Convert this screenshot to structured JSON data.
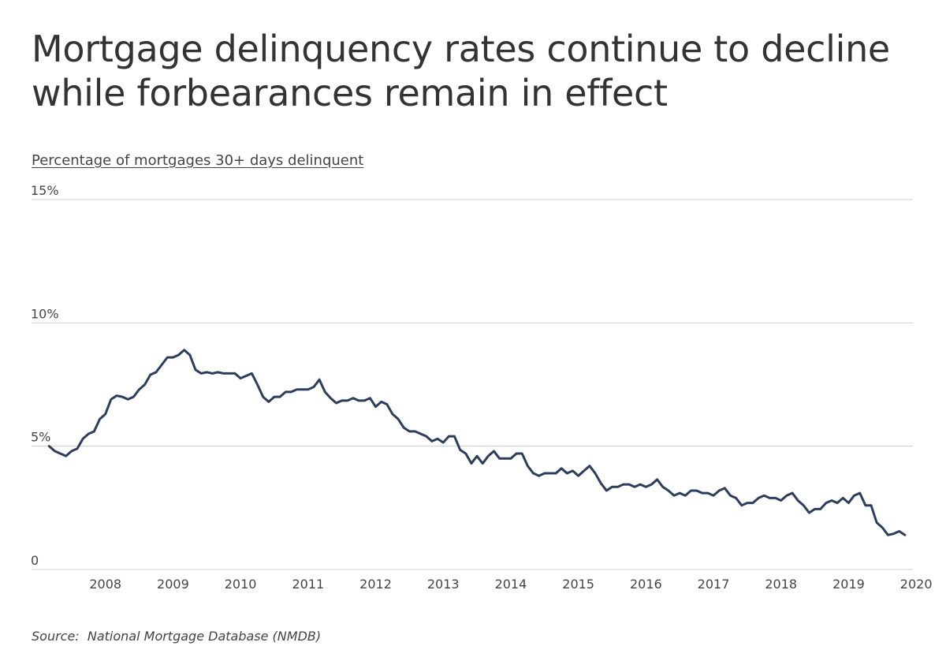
{
  "page": {
    "title": "Mortgage delinquency rates continue to decline while forbearances remain in effect",
    "source_label": "Source:",
    "source_text": "National Mortgage Database (NMDB)"
  },
  "chart_data": {
    "type": "line",
    "title": "Mortgage delinquency rates continue to decline while forbearances remain in effect",
    "ylabel": "Percentage of mortgages 30+ days delinquent",
    "xlabel": "",
    "ylim": [
      0,
      15
    ],
    "y_ticks": [
      {
        "value": 0,
        "label": "0"
      },
      {
        "value": 5,
        "label": "5%"
      },
      {
        "value": 10,
        "label": "10%"
      },
      {
        "value": 15,
        "label": "15%"
      }
    ],
    "x_ticks": [
      "2008",
      "2009",
      "2010",
      "2011",
      "2012",
      "2013",
      "2014",
      "2015",
      "2016",
      "2017",
      "2018",
      "2019",
      "2020"
    ],
    "xlim": [
      "2007-07",
      "2020-06"
    ],
    "grid": true,
    "line_color": "#2d3e5c",
    "grid_color": "#cccccc",
    "series": [
      {
        "x": [
          "2007-09",
          "2007-10",
          "2007-11",
          "2007-12",
          "2008-01",
          "2008-02",
          "2008-03",
          "2008-04",
          "2008-05",
          "2008-06",
          "2008-07",
          "2008-08",
          "2008-09",
          "2008-10",
          "2008-11",
          "2008-12",
          "2009-01",
          "2009-02",
          "2009-03",
          "2009-04",
          "2009-05",
          "2009-06",
          "2009-07",
          "2009-08",
          "2009-09",
          "2009-10",
          "2009-11",
          "2009-12",
          "2010-01",
          "2010-02",
          "2010-03",
          "2010-04",
          "2010-05",
          "2010-06",
          "2010-07",
          "2010-08",
          "2010-09",
          "2010-10",
          "2010-11",
          "2010-12",
          "2011-01",
          "2011-02",
          "2011-03",
          "2011-04",
          "2011-05",
          "2011-06",
          "2011-07",
          "2011-08",
          "2011-09",
          "2011-10",
          "2011-11",
          "2011-12",
          "2012-01",
          "2012-02",
          "2012-03",
          "2012-04",
          "2012-05",
          "2012-06",
          "2012-07",
          "2012-08",
          "2012-09",
          "2012-10",
          "2012-11",
          "2012-12",
          "2013-01",
          "2013-02",
          "2013-03",
          "2013-04",
          "2013-05",
          "2013-06",
          "2013-07",
          "2013-08",
          "2013-09",
          "2013-10",
          "2013-11",
          "2013-12",
          "2014-01",
          "2014-02",
          "2014-03",
          "2014-04",
          "2014-05",
          "2014-06",
          "2014-07",
          "2014-08",
          "2014-09",
          "2014-10",
          "2014-11",
          "2014-12",
          "2015-01",
          "2015-02",
          "2015-03",
          "2015-04",
          "2015-05",
          "2015-06",
          "2015-07",
          "2015-08",
          "2015-09",
          "2015-10",
          "2015-11",
          "2015-12",
          "2016-01",
          "2016-02",
          "2016-03",
          "2016-04",
          "2016-05",
          "2016-06",
          "2016-07",
          "2016-08",
          "2016-09",
          "2016-10",
          "2016-11",
          "2016-12",
          "2017-01",
          "2017-02",
          "2017-03",
          "2017-04",
          "2017-05",
          "2017-06",
          "2017-07",
          "2017-08",
          "2017-09",
          "2017-10",
          "2017-11",
          "2017-12",
          "2018-01",
          "2018-02",
          "2018-03",
          "2018-04",
          "2018-05",
          "2018-06",
          "2018-07",
          "2018-08",
          "2018-09",
          "2018-10",
          "2018-11",
          "2018-12",
          "2019-01",
          "2019-02",
          "2019-03",
          "2019-04",
          "2019-05",
          "2019-06",
          "2019-07",
          "2019-08",
          "2019-09",
          "2019-10",
          "2019-11",
          "2019-12",
          "2020-01",
          "2020-02",
          "2020-03",
          "2020-04",
          "2020-05"
        ],
        "values": [
          5.0,
          4.8,
          4.7,
          4.6,
          4.8,
          4.9,
          5.3,
          5.5,
          5.6,
          6.1,
          6.3,
          6.9,
          7.05,
          7.0,
          6.9,
          7.0,
          7.3,
          7.5,
          7.9,
          8.0,
          8.3,
          8.6,
          8.6,
          8.7,
          8.9,
          8.7,
          8.1,
          7.95,
          8.0,
          7.95,
          8.0,
          7.95,
          7.95,
          7.95,
          7.75,
          7.85,
          7.95,
          7.5,
          7.0,
          6.8,
          7.0,
          7.0,
          7.2,
          7.2,
          7.3,
          7.3,
          7.3,
          7.4,
          7.7,
          7.2,
          6.95,
          6.75,
          6.85,
          6.85,
          6.95,
          6.85,
          6.85,
          6.95,
          6.6,
          6.8,
          6.7,
          6.3,
          6.1,
          5.75,
          5.6,
          5.6,
          5.5,
          5.4,
          5.2,
          5.3,
          5.15,
          5.4,
          5.4,
          4.85,
          4.7,
          4.3,
          4.6,
          4.3,
          4.6,
          4.8,
          4.5,
          4.5,
          4.5,
          4.7,
          4.7,
          4.2,
          3.9,
          3.8,
          3.9,
          3.9,
          3.9,
          4.1,
          3.9,
          4.0,
          3.8,
          4.0,
          4.2,
          3.9,
          3.5,
          3.2,
          3.35,
          3.35,
          3.45,
          3.45,
          3.35,
          3.45,
          3.35,
          3.45,
          3.65,
          3.35,
          3.2,
          3.0,
          3.1,
          3.0,
          3.2,
          3.2,
          3.1,
          3.1,
          3.0,
          3.2,
          3.3,
          3.0,
          2.9,
          2.6,
          2.7,
          2.7,
          2.9,
          3.0,
          2.9,
          2.9,
          2.8,
          3.0,
          3.1,
          2.8,
          2.6,
          2.3,
          2.45,
          2.45,
          2.7,
          2.8,
          2.7,
          2.9,
          2.7,
          3.0,
          3.1,
          2.6,
          2.6,
          1.9,
          1.7,
          1.4,
          1.45,
          1.55,
          1.4
        ]
      }
    ]
  }
}
